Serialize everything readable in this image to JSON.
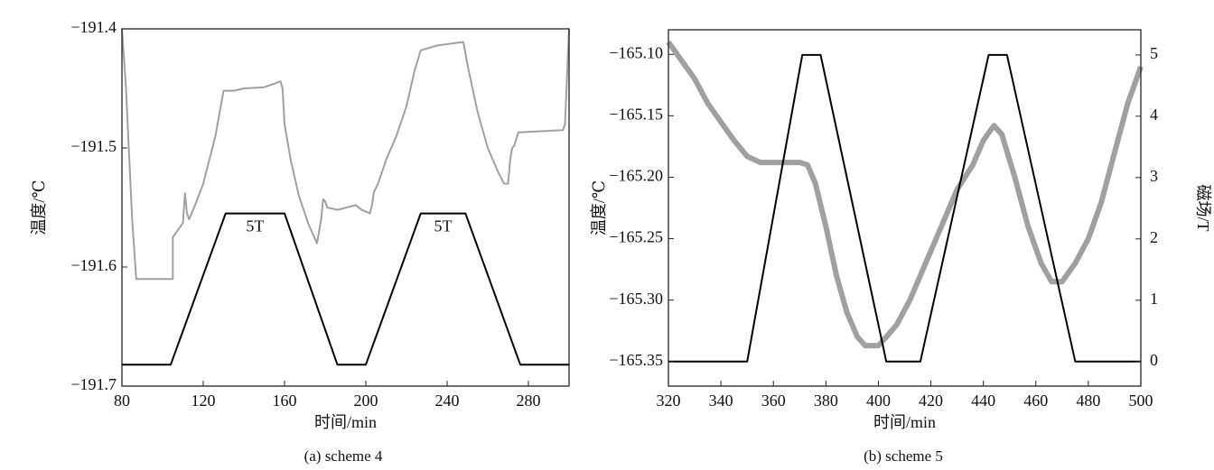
{
  "chart_data": [
    {
      "type": "line",
      "title": "(a) scheme 4",
      "xlabel": "时间/min",
      "ylabel": "温度/℃",
      "xlim": [
        80,
        300
      ],
      "ylim": [
        -191.7,
        -191.4
      ],
      "xticks": [
        80,
        120,
        160,
        200,
        240,
        280
      ],
      "yticks": [
        {
          "value": -191.4,
          "label": "−191.4"
        },
        {
          "value": -191.5,
          "label": "−191.5"
        },
        {
          "value": -191.6,
          "label": "−191.6"
        },
        {
          "value": -191.7,
          "label": "−191.7"
        }
      ],
      "annotations": [
        "5T",
        "5T"
      ],
      "series": [
        {
          "color": "#a0a0a0",
          "x": [
            80,
            82,
            85,
            87,
            105,
            105,
            110,
            111,
            112,
            113,
            116,
            120,
            126,
            130,
            135,
            140,
            150,
            155,
            158,
            159,
            160,
            163,
            167,
            172,
            176,
            178,
            179,
            180,
            181,
            186,
            195,
            198,
            202,
            203,
            204,
            206,
            210,
            215,
            220,
            224,
            227,
            235,
            248,
            250,
            255,
            260,
            265,
            268,
            270,
            271,
            272,
            273,
            275,
            297,
            298,
            300
          ],
          "values": [
            -191.4,
            -191.45,
            -191.56,
            -191.61,
            -191.61,
            -191.575,
            -191.563,
            -191.538,
            -191.555,
            -191.56,
            -191.548,
            -191.53,
            -191.49,
            -191.452,
            -191.452,
            -191.45,
            -191.449,
            -191.446,
            -191.444,
            -191.45,
            -191.48,
            -191.51,
            -191.54,
            -191.565,
            -191.58,
            -191.56,
            -191.543,
            -191.545,
            -191.55,
            -191.552,
            -191.548,
            -191.552,
            -191.555,
            -191.548,
            -191.537,
            -191.53,
            -191.51,
            -191.49,
            -191.465,
            -191.435,
            -191.418,
            -191.414,
            -191.411,
            -191.43,
            -191.47,
            -191.5,
            -191.52,
            -191.53,
            -191.53,
            -191.51,
            -191.5,
            -191.498,
            -191.487,
            -191.485,
            -191.48,
            -191.4
          ]
        },
        {
          "color": "#000000",
          "x": [
            80,
            104,
            131,
            160,
            186,
            200,
            227,
            249,
            276,
            300
          ],
          "values": [
            -191.682,
            -191.682,
            -191.555,
            -191.555,
            -191.682,
            -191.682,
            -191.555,
            -191.555,
            -191.682,
            -191.682
          ]
        }
      ]
    },
    {
      "type": "line",
      "title": "(b) scheme 5",
      "xlabel": "时间/min",
      "ylabel": "温度/℃",
      "y2label": "磁场/T",
      "xlim": [
        320,
        500
      ],
      "ylim": [
        -165.37,
        -165.08
      ],
      "y2lim": [
        -0.4,
        5.41
      ],
      "xticks": [
        320,
        340,
        360,
        380,
        400,
        420,
        440,
        460,
        480,
        500
      ],
      "yticks": [
        {
          "value": -165.1,
          "label": "−165.10"
        },
        {
          "value": -165.15,
          "label": "−165.15"
        },
        {
          "value": -165.2,
          "label": "−165.20"
        },
        {
          "value": -165.25,
          "label": "−165.25"
        },
        {
          "value": -165.3,
          "label": "−165.30"
        },
        {
          "value": -165.35,
          "label": "−165.35"
        }
      ],
      "y2ticks": [
        0,
        1,
        2,
        3,
        4,
        5
      ],
      "series": [
        {
          "color": "#a0a0a0",
          "x": [
            320,
            325,
            330,
            335,
            340,
            345,
            350,
            355,
            360,
            365,
            370,
            373,
            376,
            380,
            384,
            388,
            392,
            395,
            400,
            403,
            407,
            412,
            418,
            424,
            430,
            436,
            440,
            444,
            447,
            452,
            457,
            462,
            466,
            470,
            475,
            480,
            485,
            490,
            495,
            500
          ],
          "values": [
            -165.09,
            -165.105,
            -165.12,
            -165.14,
            -165.155,
            -165.17,
            -165.183,
            -165.188,
            -165.188,
            -165.188,
            -165.188,
            -165.19,
            -165.205,
            -165.24,
            -165.28,
            -165.31,
            -165.33,
            -165.337,
            -165.337,
            -165.33,
            -165.32,
            -165.3,
            -165.27,
            -165.24,
            -165.21,
            -165.19,
            -165.17,
            -165.158,
            -165.165,
            -165.2,
            -165.24,
            -165.27,
            -165.285,
            -165.285,
            -165.27,
            -165.25,
            -165.22,
            -165.18,
            -165.14,
            -165.11
          ]
        },
        {
          "color": "#000000",
          "axis": "y2",
          "x": [
            320,
            350,
            371,
            378,
            403,
            416,
            442,
            449,
            475,
            500
          ],
          "values": [
            0,
            0,
            5,
            5,
            0,
            0,
            5,
            5,
            0,
            0
          ]
        }
      ]
    }
  ]
}
